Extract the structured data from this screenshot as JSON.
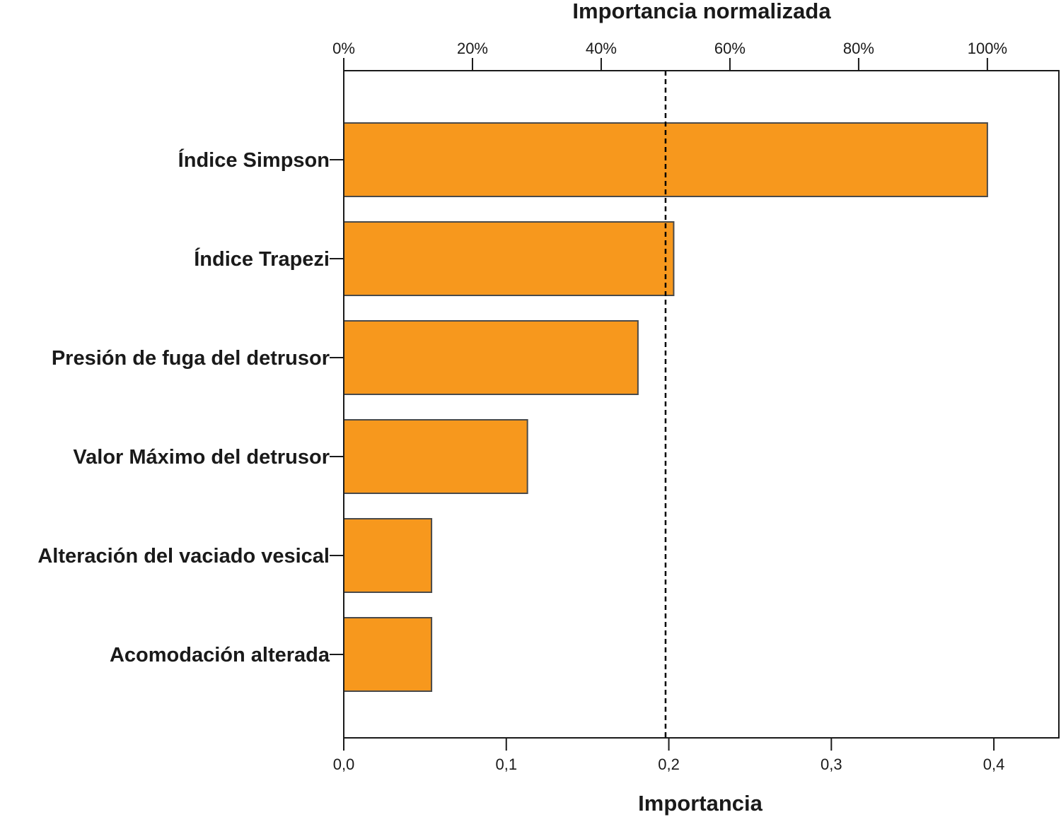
{
  "chart_data": {
    "type": "bar",
    "orientation": "horizontal",
    "categories": [
      "Índice Simpson",
      "Índice Trapezi",
      "Presión de fuga del detrusor",
      "Valor Máximo del detrusor",
      "Alteración del vaciado vesical",
      "Acomodación alterada"
    ],
    "values": [
      0.396,
      0.203,
      0.181,
      0.113,
      0.054,
      0.054
    ],
    "xlabel": "Importancia",
    "xlim": [
      0,
      0.44
    ],
    "x_ticks": [
      0.0,
      0.1,
      0.2,
      0.3,
      0.4
    ],
    "x_tick_labels": [
      "0,0",
      "0,1",
      "0,2",
      "0,3",
      "0,4"
    ],
    "secondary_axis_title": "Importancia normalizada",
    "secondary_ticks": [
      0,
      20,
      40,
      60,
      80,
      100
    ],
    "secondary_tick_labels": [
      "0%",
      "20%",
      "40%",
      "60%",
      "80%",
      "100%"
    ],
    "secondary_axis_max_value": 0.396,
    "reference_line": {
      "value": 0.198,
      "style": "dashed"
    },
    "bar_color": "#f7981d",
    "bar_edge_color": "#4a4a4a",
    "grid": false,
    "legend": "none"
  }
}
